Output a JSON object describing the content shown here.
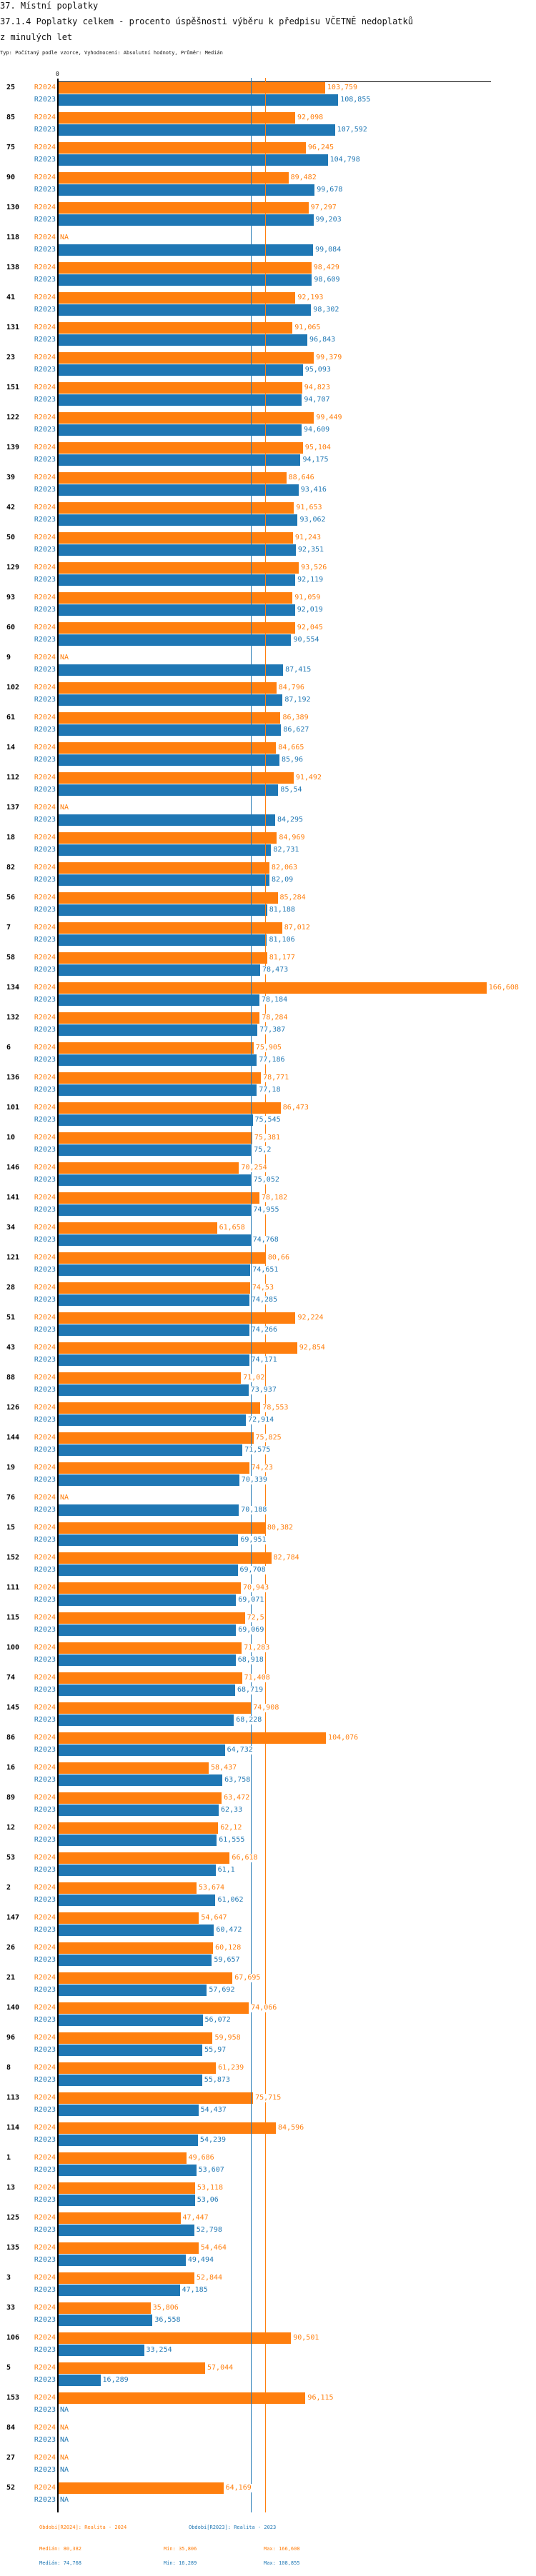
{
  "header": {
    "section": "37. Místní poplatky",
    "title_line1": "37.1.4 Poplatky celkem - procento úspěšnosti výběru k předpisu VČETNĚ nedoplatků",
    "title_line2": "z minulých let",
    "subtitle": "Typ: Počítaný podle vzorce, Vyhodnocení: Absolutní hodnoty, Průměr: Medián"
  },
  "chart_data": {
    "type": "bar",
    "orientation": "horizontal",
    "axis_zero_label": "0",
    "xlim": [
      0,
      168.4
    ],
    "grid": false,
    "colors": {
      "R2024": "#ff7f0e",
      "R2023": "#1f77b4"
    },
    "series_keys": [
      "R2024",
      "R2023"
    ],
    "na_label": "NA",
    "rows": [
      {
        "id": "25",
        "R2024": 103.759,
        "R2023": 108.855
      },
      {
        "id": "85",
        "R2024": 92.098,
        "R2023": 107.592
      },
      {
        "id": "75",
        "R2024": 96.245,
        "R2023": 104.798
      },
      {
        "id": "90",
        "R2024": 89.482,
        "R2023": 99.678
      },
      {
        "id": "130",
        "R2024": 97.297,
        "R2023": 99.203
      },
      {
        "id": "118",
        "R2024": null,
        "R2023": 99.084
      },
      {
        "id": "138",
        "R2024": 98.429,
        "R2023": 98.609
      },
      {
        "id": "41",
        "R2024": 92.193,
        "R2023": 98.302
      },
      {
        "id": "131",
        "R2024": 91.065,
        "R2023": 96.843
      },
      {
        "id": "23",
        "R2024": 99.379,
        "R2023": 95.093
      },
      {
        "id": "151",
        "R2024": 94.823,
        "R2023": 94.707
      },
      {
        "id": "122",
        "R2024": 99.449,
        "R2023": 94.609
      },
      {
        "id": "139",
        "R2024": 95.104,
        "R2023": 94.175
      },
      {
        "id": "39",
        "R2024": 88.646,
        "R2023": 93.416
      },
      {
        "id": "42",
        "R2024": 91.653,
        "R2023": 93.062
      },
      {
        "id": "50",
        "R2024": 91.243,
        "R2023": 92.351
      },
      {
        "id": "129",
        "R2024": 93.526,
        "R2023": 92.119
      },
      {
        "id": "93",
        "R2024": 91.059,
        "R2023": 92.019
      },
      {
        "id": "60",
        "R2024": 92.045,
        "R2023": 90.554
      },
      {
        "id": "9",
        "R2024": null,
        "R2023": 87.415
      },
      {
        "id": "102",
        "R2024": 84.796,
        "R2023": 87.192
      },
      {
        "id": "61",
        "R2024": 86.389,
        "R2023": 86.627
      },
      {
        "id": "14",
        "R2024": 84.665,
        "R2023": 85.96
      },
      {
        "id": "112",
        "R2024": 91.492,
        "R2023": 85.54
      },
      {
        "id": "137",
        "R2024": null,
        "R2023": 84.295
      },
      {
        "id": "18",
        "R2024": 84.969,
        "R2023": 82.731
      },
      {
        "id": "82",
        "R2024": 82.063,
        "R2023": 82.09
      },
      {
        "id": "56",
        "R2024": 85.284,
        "R2023": 81.188
      },
      {
        "id": "7",
        "R2024": 87.012,
        "R2023": 81.106
      },
      {
        "id": "58",
        "R2024": 81.177,
        "R2023": 78.473
      },
      {
        "id": "134",
        "R2024": 166.608,
        "R2023": 78.184
      },
      {
        "id": "132",
        "R2024": 78.284,
        "R2023": 77.387
      },
      {
        "id": "6",
        "R2024": 75.905,
        "R2023": 77.186
      },
      {
        "id": "136",
        "R2024": 78.771,
        "R2023": 77.18
      },
      {
        "id": "101",
        "R2024": 86.473,
        "R2023": 75.545
      },
      {
        "id": "10",
        "R2024": 75.381,
        "R2023": 75.2
      },
      {
        "id": "146",
        "R2024": 70.254,
        "R2023": 75.052
      },
      {
        "id": "141",
        "R2024": 78.182,
        "R2023": 74.955
      },
      {
        "id": "34",
        "R2024": 61.658,
        "R2023": 74.768
      },
      {
        "id": "121",
        "R2024": 80.66,
        "R2023": 74.651
      },
      {
        "id": "28",
        "R2024": 74.53,
        "R2023": 74.285
      },
      {
        "id": "51",
        "R2024": 92.224,
        "R2023": 74.266
      },
      {
        "id": "43",
        "R2024": 92.854,
        "R2023": 74.171
      },
      {
        "id": "88",
        "R2024": 71.02,
        "R2023": 73.937
      },
      {
        "id": "126",
        "R2024": 78.553,
        "R2023": 72.914
      },
      {
        "id": "144",
        "R2024": 75.825,
        "R2023": 71.575
      },
      {
        "id": "19",
        "R2024": 74.23,
        "R2023": 70.339
      },
      {
        "id": "76",
        "R2024": null,
        "R2023": 70.188
      },
      {
        "id": "15",
        "R2024": 80.382,
        "R2023": 69.951
      },
      {
        "id": "152",
        "R2024": 82.784,
        "R2023": 69.708
      },
      {
        "id": "111",
        "R2024": 70.943,
        "R2023": 69.071
      },
      {
        "id": "115",
        "R2024": 72.5,
        "R2023": 69.069
      },
      {
        "id": "100",
        "R2024": 71.283,
        "R2023": 68.918
      },
      {
        "id": "74",
        "R2024": 71.408,
        "R2023": 68.719
      },
      {
        "id": "145",
        "R2024": 74.908,
        "R2023": 68.228
      },
      {
        "id": "86",
        "R2024": 104.076,
        "R2023": 64.732
      },
      {
        "id": "16",
        "R2024": 58.437,
        "R2023": 63.758
      },
      {
        "id": "89",
        "R2024": 63.472,
        "R2023": 62.33
      },
      {
        "id": "12",
        "R2024": 62.12,
        "R2023": 61.555
      },
      {
        "id": "53",
        "R2024": 66.618,
        "R2023": 61.1
      },
      {
        "id": "2",
        "R2024": 53.674,
        "R2023": 61.062
      },
      {
        "id": "147",
        "R2024": 54.647,
        "R2023": 60.472
      },
      {
        "id": "26",
        "R2024": 60.128,
        "R2023": 59.657
      },
      {
        "id": "21",
        "R2024": 67.695,
        "R2023": 57.692
      },
      {
        "id": "140",
        "R2024": 74.066,
        "R2023": 56.072
      },
      {
        "id": "96",
        "R2024": 59.958,
        "R2023": 55.97
      },
      {
        "id": "8",
        "R2024": 61.239,
        "R2023": 55.873
      },
      {
        "id": "113",
        "R2024": 75.715,
        "R2023": 54.437
      },
      {
        "id": "114",
        "R2024": 84.596,
        "R2023": 54.239
      },
      {
        "id": "1",
        "R2024": 49.686,
        "R2023": 53.607
      },
      {
        "id": "13",
        "R2024": 53.118,
        "R2023": 53.06
      },
      {
        "id": "125",
        "R2024": 47.447,
        "R2023": 52.798
      },
      {
        "id": "135",
        "R2024": 54.464,
        "R2023": 49.494
      },
      {
        "id": "3",
        "R2024": 52.844,
        "R2023": 47.185
      },
      {
        "id": "33",
        "R2024": 35.806,
        "R2023": 36.558
      },
      {
        "id": "106",
        "R2024": 90.501,
        "R2023": 33.254
      },
      {
        "id": "5",
        "R2024": 57.044,
        "R2023": 16.289
      },
      {
        "id": "153",
        "R2024": 96.115,
        "R2023": null
      },
      {
        "id": "84",
        "R2024": null,
        "R2023": null
      },
      {
        "id": "27",
        "R2024": null,
        "R2023": null
      },
      {
        "id": "52",
        "R2024": 64.169,
        "R2023": null
      }
    ],
    "medians": {
      "R2024": 80.382,
      "R2023": 74.768
    },
    "legend": {
      "R2024": "Období[R2024]: Realita - 2024",
      "R2023": "Období[R2023]: Realita - 2023"
    },
    "stats": {
      "R2024": {
        "median": "Medián: 80,382",
        "min": "Min: 35,806",
        "max": "Max: 166,608"
      },
      "R2023": {
        "median": "Medián: 74,768",
        "min": "Min: 16,289",
        "max": "Max: 108,855"
      }
    }
  }
}
